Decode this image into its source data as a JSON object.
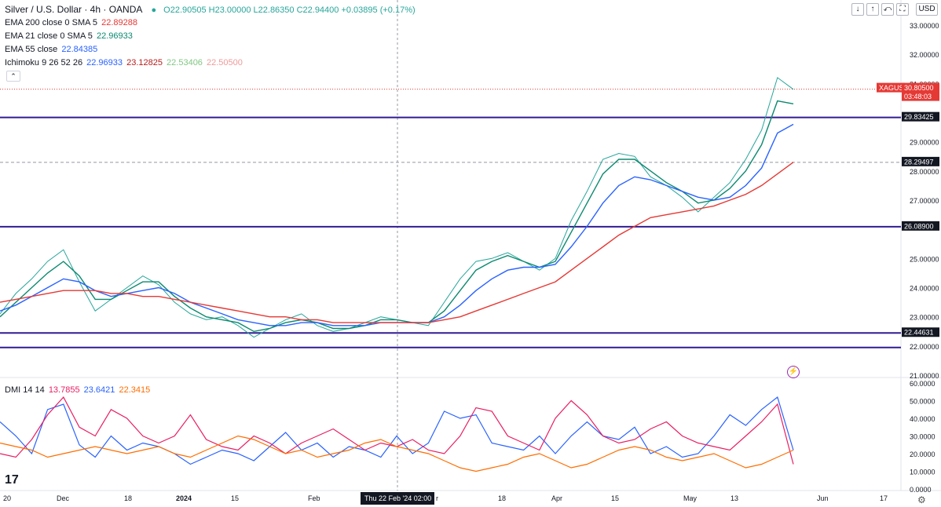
{
  "header": {
    "symbol_title": "Silver / U.S. Dollar · 4h · OANDA",
    "ohlc": "O22.90505 H23.00000 L22.86350 C22.94400 +0.03895 (+0.17%)",
    "indicators": [
      {
        "label": "EMA 200 close 0 SMA 5",
        "value": "22.89288",
        "color": "#e53935"
      },
      {
        "label": "EMA 21 close 0 SMA 5",
        "value": "22.96933",
        "color": "#0b8a70"
      },
      {
        "label": "EMA 55 close",
        "value": "22.84385",
        "color": "#2962ff"
      },
      {
        "label": "Ichimoku 9 26 52 26",
        "values": [
          "22.96933",
          "23.12825",
          "22.53406",
          "22.50500"
        ],
        "colors": [
          "#2962ff",
          "#b71c1c",
          "#81c784",
          "#ef9a9a"
        ]
      }
    ],
    "currency": "USD"
  },
  "dmi_legend": {
    "label": "DMI 14 14",
    "values": [
      "13.7855",
      "23.6421",
      "22.3415"
    ],
    "colors": [
      "#e91e63",
      "#2962ff",
      "#ff6d00"
    ]
  },
  "price_axis": {
    "ticks": [
      "33.00000",
      "32.00000",
      "31.00000",
      "29.00000",
      "28.00000",
      "27.00000",
      "25.00000",
      "24.00000",
      "23.00000",
      "22.00000",
      "21.00000"
    ]
  },
  "dmi_axis": {
    "ticks": [
      "60.0000",
      "50.0000",
      "40.0000",
      "30.0000",
      "20.0000",
      "10.0000",
      "0.0000"
    ]
  },
  "time_axis": {
    "labels": [
      "20",
      "Dec",
      "18",
      "2024",
      "15",
      "Feb",
      "r",
      "18",
      "Apr",
      "15",
      "May",
      "13",
      "Jun",
      "17"
    ],
    "crosshair_label": "Thu 22 Feb '24   02:00"
  },
  "price_labels": [
    {
      "text": "XAGUSD",
      "value": 30.805,
      "color": "#e53935"
    },
    {
      "text": "30.80500",
      "value": 30.805,
      "color": "#e53935"
    },
    {
      "text": "03:48:03",
      "value": 30.805,
      "color": "#e53935"
    },
    {
      "text": "29.83425",
      "value": 29.83425,
      "color": "#131722"
    },
    {
      "text": "28.29497",
      "value": 28.29497,
      "color": "#131722"
    },
    {
      "text": "26.08900",
      "value": 26.089,
      "color": "#131722"
    },
    {
      "text": "22.44631",
      "value": 22.44631,
      "color": "#131722"
    }
  ],
  "chart_data": {
    "type": "line",
    "price_range": [
      21.0,
      33.0
    ],
    "horizontal_levels": [
      {
        "value": 29.83425,
        "label": "29.83425",
        "color": "#311b92"
      },
      {
        "value": 26.089,
        "label": "26.08900",
        "color": "#311b92"
      },
      {
        "value": 22.44631,
        "label": "22.44631",
        "color": "#311b92"
      },
      {
        "value": 21.95,
        "label": "",
        "color": "#311b92"
      }
    ],
    "dashed_level": 28.29497,
    "last_price": 30.805,
    "x": [
      0,
      20,
      40,
      60,
      80,
      100,
      120,
      140,
      160,
      180,
      200,
      220,
      240,
      260,
      280,
      300,
      320,
      340,
      360,
      380,
      400,
      420,
      440,
      460,
      480,
      500,
      520,
      540,
      560,
      580,
      600,
      620,
      640,
      660,
      680,
      700,
      720,
      740,
      760,
      780,
      800,
      820,
      840,
      860,
      880,
      900,
      920,
      940,
      960,
      980,
      1000
    ],
    "series": [
      {
        "name": "Close",
        "color": "#26a69a",
        "values": [
          23.1,
          23.8,
          24.3,
          24.9,
          25.3,
          24.2,
          23.2,
          23.6,
          24.0,
          24.4,
          24.1,
          23.5,
          23.1,
          22.9,
          23.0,
          22.7,
          22.3,
          22.6,
          22.9,
          23.1,
          22.7,
          22.5,
          22.6,
          22.8,
          23.0,
          22.9,
          22.8,
          22.7,
          23.5,
          24.3,
          24.9,
          25.0,
          25.2,
          24.9,
          24.6,
          25.0,
          26.3,
          27.3,
          28.4,
          28.6,
          28.5,
          27.8,
          27.5,
          27.1,
          26.6,
          27.1,
          27.6,
          28.4,
          29.4,
          31.2,
          30.8
        ]
      },
      {
        "name": "EMA 21",
        "color": "#0b8a70",
        "values": [
          23.0,
          23.5,
          24.0,
          24.5,
          24.9,
          24.4,
          23.6,
          23.6,
          23.9,
          24.2,
          24.2,
          23.7,
          23.3,
          23.0,
          22.9,
          22.8,
          22.5,
          22.6,
          22.8,
          22.9,
          22.8,
          22.6,
          22.6,
          22.7,
          22.9,
          22.9,
          22.8,
          22.8,
          23.2,
          23.9,
          24.6,
          24.9,
          25.1,
          24.9,
          24.7,
          24.9,
          25.9,
          26.9,
          27.9,
          28.4,
          28.4,
          28.0,
          27.6,
          27.3,
          26.9,
          27.0,
          27.4,
          28.0,
          28.9,
          30.4,
          30.3
        ]
      },
      {
        "name": "EMA 55",
        "color": "#2962ff",
        "values": [
          23.2,
          23.4,
          23.7,
          24.0,
          24.3,
          24.2,
          23.9,
          23.7,
          23.8,
          23.9,
          24.0,
          23.8,
          23.5,
          23.3,
          23.1,
          22.9,
          22.8,
          22.7,
          22.7,
          22.8,
          22.8,
          22.7,
          22.7,
          22.7,
          22.8,
          22.8,
          22.8,
          22.8,
          23.0,
          23.4,
          23.9,
          24.3,
          24.6,
          24.7,
          24.7,
          24.8,
          25.4,
          26.1,
          26.9,
          27.5,
          27.8,
          27.7,
          27.5,
          27.3,
          27.1,
          27.0,
          27.1,
          27.5,
          28.1,
          29.3,
          29.6
        ]
      },
      {
        "name": "EMA 200",
        "color": "#e53935",
        "values": [
          23.5,
          23.6,
          23.7,
          23.8,
          23.9,
          23.9,
          23.9,
          23.8,
          23.8,
          23.7,
          23.7,
          23.6,
          23.5,
          23.4,
          23.3,
          23.2,
          23.1,
          23.0,
          23.0,
          22.9,
          22.9,
          22.8,
          22.8,
          22.8,
          22.8,
          22.8,
          22.8,
          22.8,
          22.9,
          23.0,
          23.2,
          23.4,
          23.6,
          23.8,
          24.0,
          24.2,
          24.6,
          25.0,
          25.4,
          25.8,
          26.1,
          26.4,
          26.5,
          26.6,
          26.7,
          26.8,
          27.0,
          27.2,
          27.5,
          27.9,
          28.3
        ]
      }
    ],
    "dmi": {
      "range": [
        0,
        60
      ],
      "x": [
        0,
        20,
        40,
        60,
        80,
        100,
        120,
        140,
        160,
        180,
        200,
        220,
        240,
        260,
        280,
        300,
        320,
        340,
        360,
        380,
        400,
        420,
        440,
        460,
        480,
        500,
        520,
        540,
        560,
        580,
        600,
        620,
        640,
        660,
        680,
        700,
        720,
        740,
        760,
        780,
        800,
        820,
        840,
        860,
        880,
        900,
        920,
        940,
        960,
        980,
        1000
      ],
      "series": [
        {
          "name": "DMI+",
          "color": "#2962ff",
          "values": [
            38,
            30,
            20,
            45,
            48,
            25,
            18,
            30,
            22,
            26,
            24,
            20,
            14,
            18,
            22,
            20,
            16,
            24,
            32,
            22,
            26,
            18,
            24,
            22,
            18,
            30,
            20,
            26,
            44,
            40,
            42,
            26,
            24,
            22,
            30,
            20,
            30,
            38,
            30,
            28,
            35,
            20,
            24,
            18,
            20,
            30,
            42,
            36,
            45,
            52,
            22
          ]
        },
        {
          "name": "DMI-",
          "color": "#e91e63",
          "values": [
            20,
            18,
            28,
            42,
            52,
            35,
            30,
            45,
            40,
            30,
            26,
            30,
            42,
            28,
            24,
            22,
            30,
            26,
            20,
            26,
            30,
            34,
            28,
            22,
            26,
            24,
            28,
            22,
            20,
            30,
            46,
            44,
            30,
            26,
            22,
            40,
            50,
            42,
            30,
            26,
            28,
            34,
            38,
            30,
            26,
            24,
            22,
            30,
            38,
            48,
            14
          ]
        },
        {
          "name": "ADX",
          "color": "#ff6d00",
          "values": [
            26,
            24,
            22,
            18,
            20,
            22,
            24,
            22,
            20,
            22,
            24,
            20,
            18,
            22,
            26,
            30,
            28,
            24,
            20,
            22,
            18,
            20,
            22,
            26,
            28,
            24,
            22,
            20,
            16,
            12,
            10,
            12,
            14,
            18,
            20,
            16,
            12,
            14,
            18,
            22,
            24,
            22,
            18,
            16,
            18,
            20,
            16,
            12,
            14,
            18,
            22
          ]
        }
      ]
    }
  }
}
